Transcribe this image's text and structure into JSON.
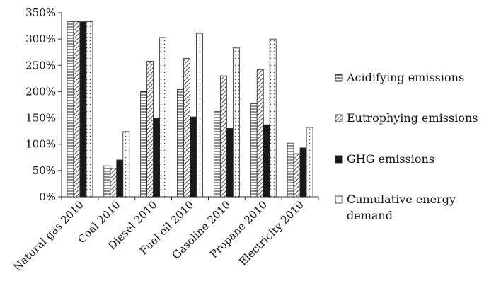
{
  "chart_data": {
    "type": "bar",
    "title": "",
    "xlabel": "",
    "ylabel": "",
    "ylim": [
      0,
      350
    ],
    "y_ticks": [
      "0%",
      "50%",
      "100%",
      "150%",
      "200%",
      "250%",
      "300%",
      "350%"
    ],
    "y_tick_values": [
      0,
      50,
      100,
      150,
      200,
      250,
      300,
      350
    ],
    "grid": false,
    "legend_position": "right",
    "categories": [
      "Natural gas 2010",
      "Coal 2010",
      "Diesel 2010",
      "Fuel oil 2010",
      "Gasoline 2010",
      "Propane 2010",
      "Electricity 2010"
    ],
    "series": [
      {
        "name": "Acidifying emissions",
        "pattern": "horizontal-lines",
        "values": [
          333,
          59,
          200,
          204,
          162,
          177,
          102
        ]
      },
      {
        "name": "Eutrophying emissions",
        "pattern": "diagonal-lines",
        "values": [
          333,
          54,
          258,
          263,
          230,
          242,
          82
        ]
      },
      {
        "name": "GHG emissions",
        "pattern": "solid",
        "values": [
          333,
          70,
          149,
          152,
          130,
          137,
          93
        ]
      },
      {
        "name": "Cumulative energy demand",
        "pattern": "dots",
        "values": [
          333,
          124,
          303,
          311,
          283,
          300,
          132
        ]
      }
    ],
    "legend": [
      "Acidifying emissions",
      "Eutrophying emissions",
      "GHG emissions",
      "Cumulative energy\ndemand"
    ]
  }
}
